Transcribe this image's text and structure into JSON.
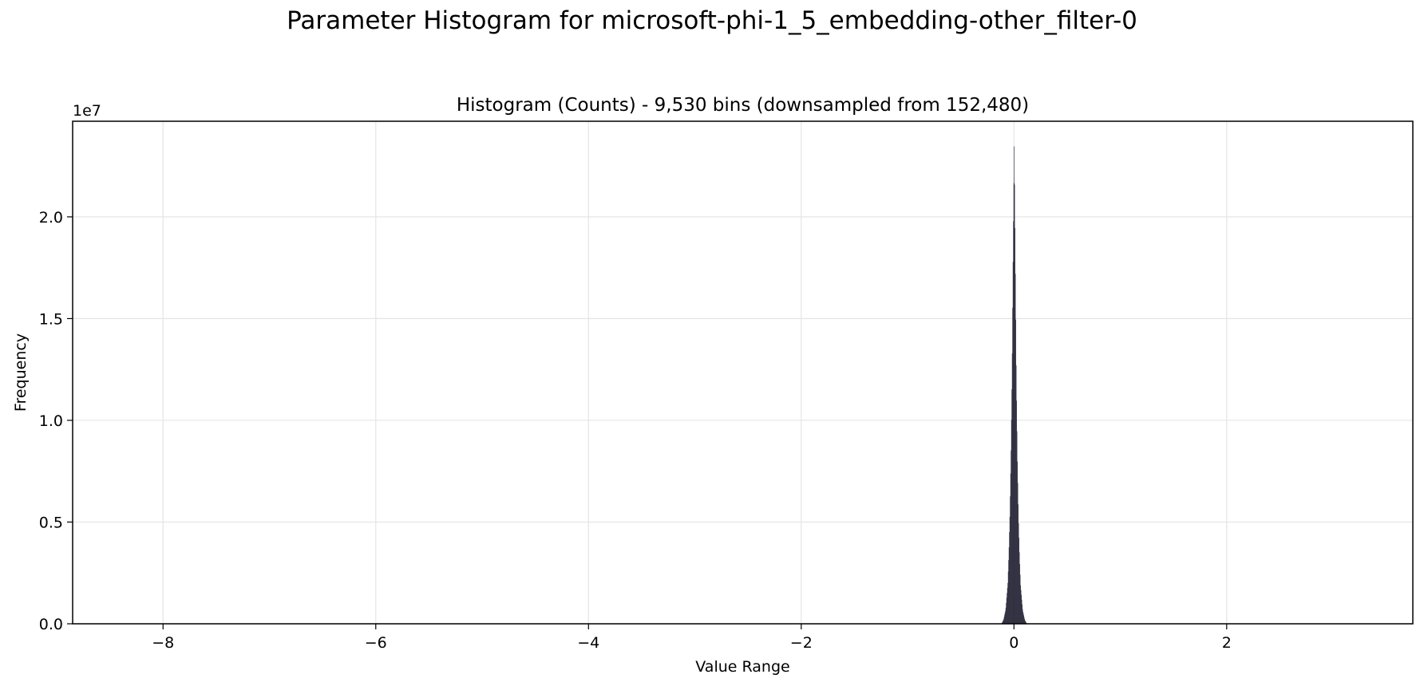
{
  "figure_title": "Parameter Histogram for microsoft-phi-1_5_embedding-other_filter-0",
  "colors": {
    "bar": "#1a1a2e",
    "grid": "#e5e5e5",
    "axis": "#000000"
  },
  "chart_data": {
    "type": "bar",
    "title": "Histogram (Counts) - 9,530 bins (downsampled from 152,480)",
    "xlabel": "Value Range",
    "ylabel": "Frequency",
    "y_offset_label": "1e7",
    "y_scale": 10000000,
    "xlim": [
      -8.85,
      3.75
    ],
    "ylim": [
      0,
      24700000
    ],
    "grid": true,
    "x_ticks": [
      -8,
      -6,
      -4,
      -2,
      0,
      2
    ],
    "x_tick_labels": [
      "−8",
      "−6",
      "−4",
      "−2",
      "0",
      "2"
    ],
    "y_ticks": [
      0,
      5000000,
      10000000,
      15000000,
      20000000
    ],
    "y_tick_labels": [
      "0.0",
      "0.5",
      "1.0",
      "1.5",
      "2.0"
    ],
    "distribution": {
      "x": [
        -0.12,
        -0.1,
        -0.08,
        -0.06,
        -0.05,
        -0.04,
        -0.03,
        -0.02,
        -0.015,
        -0.01,
        -0.005,
        0.0,
        0.005,
        0.01,
        0.015,
        0.02,
        0.03,
        0.04,
        0.05,
        0.06,
        0.08,
        0.1,
        0.12
      ],
      "y": [
        0,
        200000,
        700000,
        2000000,
        3500000,
        5500000,
        8500000,
        12500000,
        15500000,
        18500000,
        21000000,
        23500000,
        21000000,
        18000000,
        15000000,
        12000000,
        8000000,
        5200000,
        3300000,
        1900000,
        650000,
        180000,
        0
      ]
    }
  }
}
